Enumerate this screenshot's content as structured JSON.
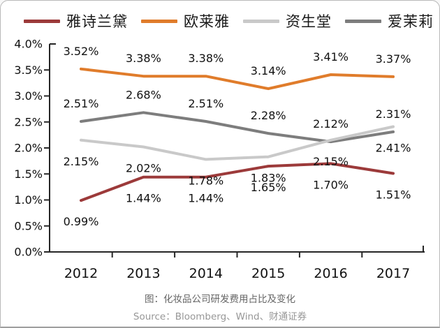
{
  "page": {
    "caption": "图：化妆品公司研发费用占比及变化",
    "source": "Source：Bloomberg、Wind、财通证券"
  },
  "chart_data": {
    "type": "line",
    "title": "图：化妆品公司研发费用占比及变化",
    "categories": [
      "2012",
      "2013",
      "2014",
      "2015",
      "2016",
      "2017"
    ],
    "series": [
      {
        "name": "雅诗兰黛",
        "color": "#9C3A3A",
        "label_side": "below",
        "values": [
          0.99,
          1.44,
          1.44,
          1.65,
          1.7,
          1.51
        ]
      },
      {
        "name": "欧莱雅",
        "color": "#E07C2B",
        "label_side": "above",
        "values": [
          3.52,
          3.38,
          3.38,
          3.14,
          3.41,
          3.37
        ]
      },
      {
        "name": "资生堂",
        "color": "#C9C9C9",
        "label_side": "below",
        "values": [
          2.15,
          2.02,
          1.78,
          1.83,
          2.15,
          2.41
        ]
      },
      {
        "name": "爱茉莉",
        "color": "#7D7D7D",
        "label_side": "above",
        "values": [
          2.51,
          2.68,
          2.51,
          2.28,
          2.12,
          2.31
        ]
      }
    ],
    "xlabel": "",
    "ylabel": "",
    "ylim": [
      0.0,
      4.0
    ],
    "y_tick_step": 0.5,
    "y_tick_labels_bottom_to_top": [
      "0.0%",
      "0.5%",
      "1.0%",
      "1.5%",
      "2.0%",
      "2.5%",
      "3.0%",
      "3.5%",
      "4.0%"
    ],
    "value_suffix": "%",
    "value_decimals": 2,
    "data_labels_shown": true,
    "grid": false,
    "legend_position": "top",
    "axis_color": "#262626",
    "label_color": "#111111"
  }
}
